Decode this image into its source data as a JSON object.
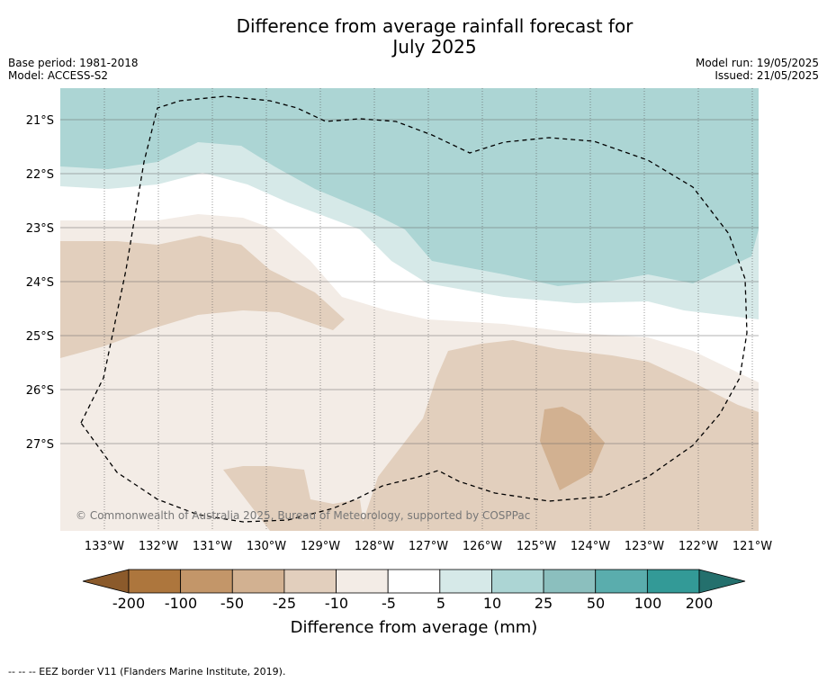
{
  "title": {
    "line1": "Difference from average rainfall forecast for",
    "line2": "July 2025"
  },
  "meta": {
    "base_period": "Base period: 1981-2018",
    "model": "Model: ACCESS-S2",
    "model_run": "Model run: 19/05/2025",
    "issued": "Issued: 21/05/2025"
  },
  "map": {
    "lat_labels": [
      "21°S",
      "22°S",
      "23°S",
      "24°S",
      "25°S",
      "26°S",
      "27°S"
    ],
    "lon_labels": [
      "133°W",
      "132°W",
      "131°W",
      "130°W",
      "129°W",
      "128°W",
      "127°W",
      "126°W",
      "125°W",
      "124°W",
      "123°W",
      "122°W",
      "121°W"
    ],
    "copyright": "© Commonwealth of Australia 2025, Bureau of Meteorology, supported by COSPPac",
    "colors": {
      "dry_25_50": "#d2b191",
      "dry_10_25": "#e2cfbd",
      "dry_5_10": "#f3ece6",
      "neutral": "#ffffff",
      "wet_5_10": "#d6e9e8",
      "wet_10_25": "#acd5d4"
    }
  },
  "colorbar": {
    "ticks": [
      "-200",
      "-100",
      "-50",
      "-25",
      "-10",
      "-5",
      "5",
      "10",
      "25",
      "50",
      "100",
      "200"
    ],
    "colors": [
      "#ad763d",
      "#c39669",
      "#d2b191",
      "#e2cfbd",
      "#f3ece6",
      "#ffffff",
      "#d6e9e8",
      "#acd5d4",
      "#8bbfbe",
      "#5aadad",
      "#339a97"
    ],
    "low_arrow": "#8b5a2b",
    "high_arrow": "#24706d",
    "label": "Difference from average (mm)"
  },
  "footer": "--  --  -- EEZ border V11 (Flanders Marine Institute, 2019)."
}
